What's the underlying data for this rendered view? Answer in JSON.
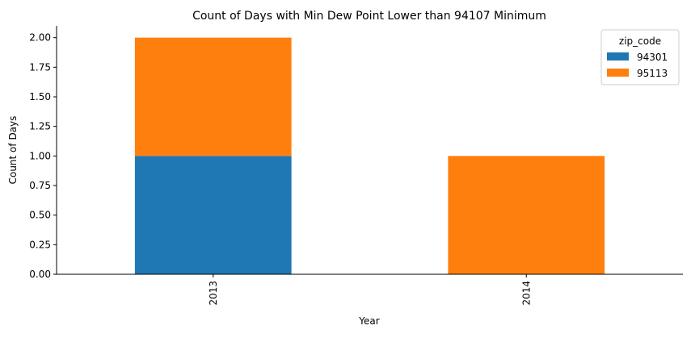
{
  "chart_data": {
    "type": "bar",
    "stacked": true,
    "title": "Count of Days with Min Dew Point Lower than 94107 Minimum",
    "xlabel": "Year",
    "ylabel": "Count of Days",
    "categories": [
      "2013",
      "2014"
    ],
    "series": [
      {
        "name": "94301",
        "values": [
          1,
          0
        ],
        "color": "#1f77b4"
      },
      {
        "name": "95113",
        "values": [
          1,
          1
        ],
        "color": "#ff7f0e"
      }
    ],
    "ylim": [
      0,
      2.1
    ],
    "yticks": [
      "0.00",
      "0.25",
      "0.50",
      "0.75",
      "1.00",
      "1.25",
      "1.50",
      "1.75",
      "2.00"
    ],
    "legend": {
      "title": "zip_code",
      "placement": "top-right"
    },
    "grid": false
  }
}
